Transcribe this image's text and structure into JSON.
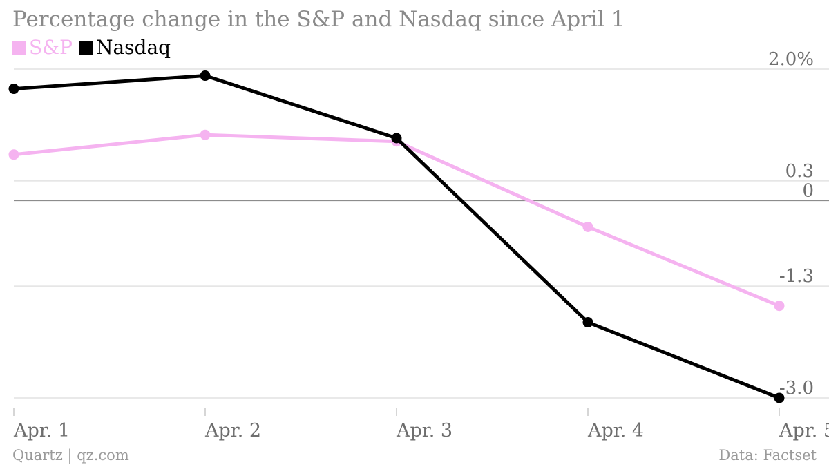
{
  "chart_data": {
    "type": "line",
    "title": "Percentage change in the S&P and Nasdaq since April 1",
    "categories": [
      "Apr. 1",
      "Apr. 2",
      "Apr. 3",
      "Apr. 4",
      "Apr. 5"
    ],
    "series": [
      {
        "name": "S&P",
        "color": "#f5b3f0",
        "values": [
          0.7,
          1.0,
          0.9,
          -0.4,
          -1.6
        ]
      },
      {
        "name": "Nasdaq",
        "color": "#000000",
        "values": [
          1.7,
          1.9,
          0.95,
          -1.85,
          -3.0
        ]
      }
    ],
    "y_ticks": [
      {
        "value": 2.0,
        "label": "2.0%"
      },
      {
        "value": 0.3,
        "label": "0.3"
      },
      {
        "value": 0,
        "label": "0"
      },
      {
        "value": -1.3,
        "label": "-1.3"
      },
      {
        "value": -3.0,
        "label": "-3.0"
      }
    ],
    "ylim": [
      -3.0,
      2.0
    ],
    "grid": true,
    "legend_position": "top-left",
    "source_left": "Quartz | qz.com",
    "source_right": "Data: Factset"
  }
}
